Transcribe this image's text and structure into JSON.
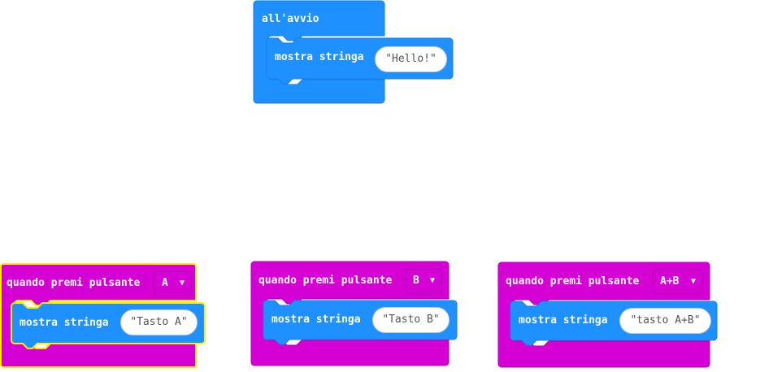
{
  "colors": {
    "basic_blue": "#1e90ff",
    "basic_blue_dark": "#1a7ee6",
    "input_magenta": "#d400d4",
    "input_magenta_dark": "#b300b3",
    "selection_yellow": "#ffee00"
  },
  "on_start": {
    "label": "all'avvio",
    "show_string": {
      "label": "mostra stringa",
      "value": "\"Hello!\""
    }
  },
  "button_handlers": [
    {
      "label": "quando premi pulsante",
      "button": "A",
      "dropdown_icon": "caret-down-icon",
      "show_string": {
        "label": "mostra stringa",
        "value": "\"Tasto A\""
      }
    },
    {
      "label": "quando premi pulsante",
      "button": "B",
      "dropdown_icon": "caret-down-icon",
      "show_string": {
        "label": "mostra stringa",
        "value": "\"Tasto B\""
      }
    },
    {
      "label": "quando premi pulsante",
      "button": "A+B",
      "dropdown_icon": "caret-down-icon",
      "show_string": {
        "label": "mostra stringa",
        "value": "\"tasto A+B\""
      }
    }
  ]
}
